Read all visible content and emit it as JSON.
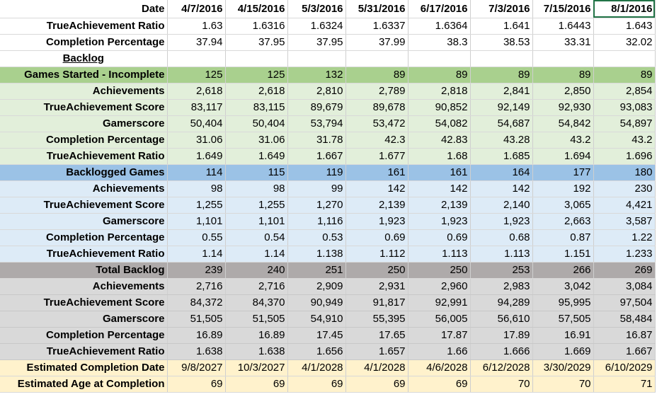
{
  "columns": [
    "4/7/2016",
    "4/15/2016",
    "5/3/2016",
    "5/31/2016",
    "6/17/2016",
    "7/3/2016",
    "7/15/2016",
    "8/1/2016"
  ],
  "header": {
    "date_label": "Date",
    "ratio_label": "TrueAchievement Ratio",
    "ratio_values": [
      "1.63",
      "1.6316",
      "1.6324",
      "1.6337",
      "1.6364",
      "1.641",
      "1.6443",
      "1.643"
    ],
    "completion_label": "Completion Percentage",
    "completion_values": [
      "37.94",
      "37.95",
      "37.95",
      "37.99",
      "38.3",
      "38.53",
      "33.31",
      "32.02"
    ],
    "backlog_label": "Backlog"
  },
  "sections": [
    {
      "key": "started",
      "rows": [
        {
          "label": "Games Started - Incomplete",
          "values": [
            "125",
            "125",
            "132",
            "89",
            "89",
            "89",
            "89",
            "89"
          ]
        },
        {
          "label": "Achievements",
          "values": [
            "2,618",
            "2,618",
            "2,810",
            "2,789",
            "2,818",
            "2,841",
            "2,850",
            "2,854"
          ]
        },
        {
          "label": "TrueAchievement Score",
          "values": [
            "83,117",
            "83,115",
            "89,679",
            "89,678",
            "90,852",
            "92,149",
            "92,930",
            "93,083"
          ]
        },
        {
          "label": "Gamerscore",
          "values": [
            "50,404",
            "50,404",
            "53,794",
            "53,472",
            "54,082",
            "54,687",
            "54,842",
            "54,897"
          ]
        },
        {
          "label": "Completion Percentage",
          "values": [
            "31.06",
            "31.06",
            "31.78",
            "42.3",
            "42.83",
            "43.28",
            "43.2",
            "43.2"
          ]
        },
        {
          "label": "TrueAchievement Ratio",
          "values": [
            "1.649",
            "1.649",
            "1.667",
            "1.677",
            "1.68",
            "1.685",
            "1.694",
            "1.696"
          ]
        }
      ]
    },
    {
      "key": "backlogged",
      "rows": [
        {
          "label": "Backlogged Games",
          "values": [
            "114",
            "115",
            "119",
            "161",
            "161",
            "164",
            "177",
            "180"
          ]
        },
        {
          "label": "Achievements",
          "values": [
            "98",
            "98",
            "99",
            "142",
            "142",
            "142",
            "192",
            "230"
          ]
        },
        {
          "label": "TrueAchievement Score",
          "values": [
            "1,255",
            "1,255",
            "1,270",
            "2,139",
            "2,139",
            "2,140",
            "3,065",
            "4,421"
          ]
        },
        {
          "label": "Gamerscore",
          "values": [
            "1,101",
            "1,101",
            "1,116",
            "1,923",
            "1,923",
            "1,923",
            "2,663",
            "3,587"
          ]
        },
        {
          "label": "Completion Percentage",
          "values": [
            "0.55",
            "0.54",
            "0.53",
            "0.69",
            "0.69",
            "0.68",
            "0.87",
            "1.22"
          ]
        },
        {
          "label": "TrueAchievement Ratio",
          "values": [
            "1.14",
            "1.14",
            "1.138",
            "1.112",
            "1.113",
            "1.113",
            "1.151",
            "1.233"
          ]
        }
      ]
    },
    {
      "key": "total",
      "rows": [
        {
          "label": "Total Backlog",
          "values": [
            "239",
            "240",
            "251",
            "250",
            "250",
            "253",
            "266",
            "269"
          ]
        },
        {
          "label": "Achievements",
          "values": [
            "2,716",
            "2,716",
            "2,909",
            "2,931",
            "2,960",
            "2,983",
            "3,042",
            "3,084"
          ]
        },
        {
          "label": "TrueAchievement Score",
          "values": [
            "84,372",
            "84,370",
            "90,949",
            "91,817",
            "92,991",
            "94,289",
            "95,995",
            "97,504"
          ]
        },
        {
          "label": "Gamerscore",
          "values": [
            "51,505",
            "51,505",
            "54,910",
            "55,395",
            "56,005",
            "56,610",
            "57,505",
            "58,484"
          ]
        },
        {
          "label": "Completion Percentage",
          "values": [
            "16.89",
            "16.89",
            "17.45",
            "17.65",
            "17.87",
            "17.89",
            "16.91",
            "16.87"
          ]
        },
        {
          "label": "TrueAchievement Ratio",
          "values": [
            "1.638",
            "1.638",
            "1.656",
            "1.657",
            "1.66",
            "1.666",
            "1.669",
            "1.667"
          ]
        }
      ]
    },
    {
      "key": "estimates",
      "rows": [
        {
          "label": "Estimated Completion Date",
          "values": [
            "9/8/2027",
            "10/3/2027",
            "4/1/2028",
            "4/1/2028",
            "4/6/2028",
            "6/12/2028",
            "3/30/2029",
            "6/10/2029"
          ]
        },
        {
          "label": "Estimated Age at Completion",
          "values": [
            "69",
            "69",
            "69",
            "69",
            "69",
            "70",
            "70",
            "71"
          ]
        }
      ]
    }
  ],
  "colors": {
    "started_head": "#a9d08e",
    "started_body": "#e2efda",
    "backlog_head": "#9bc2e6",
    "backlog_body": "#ddebf7",
    "total_head": "#aeaaaa",
    "total_body": "#d9d9d9",
    "estimate_body": "#fff2cc",
    "selection": "#217346"
  }
}
